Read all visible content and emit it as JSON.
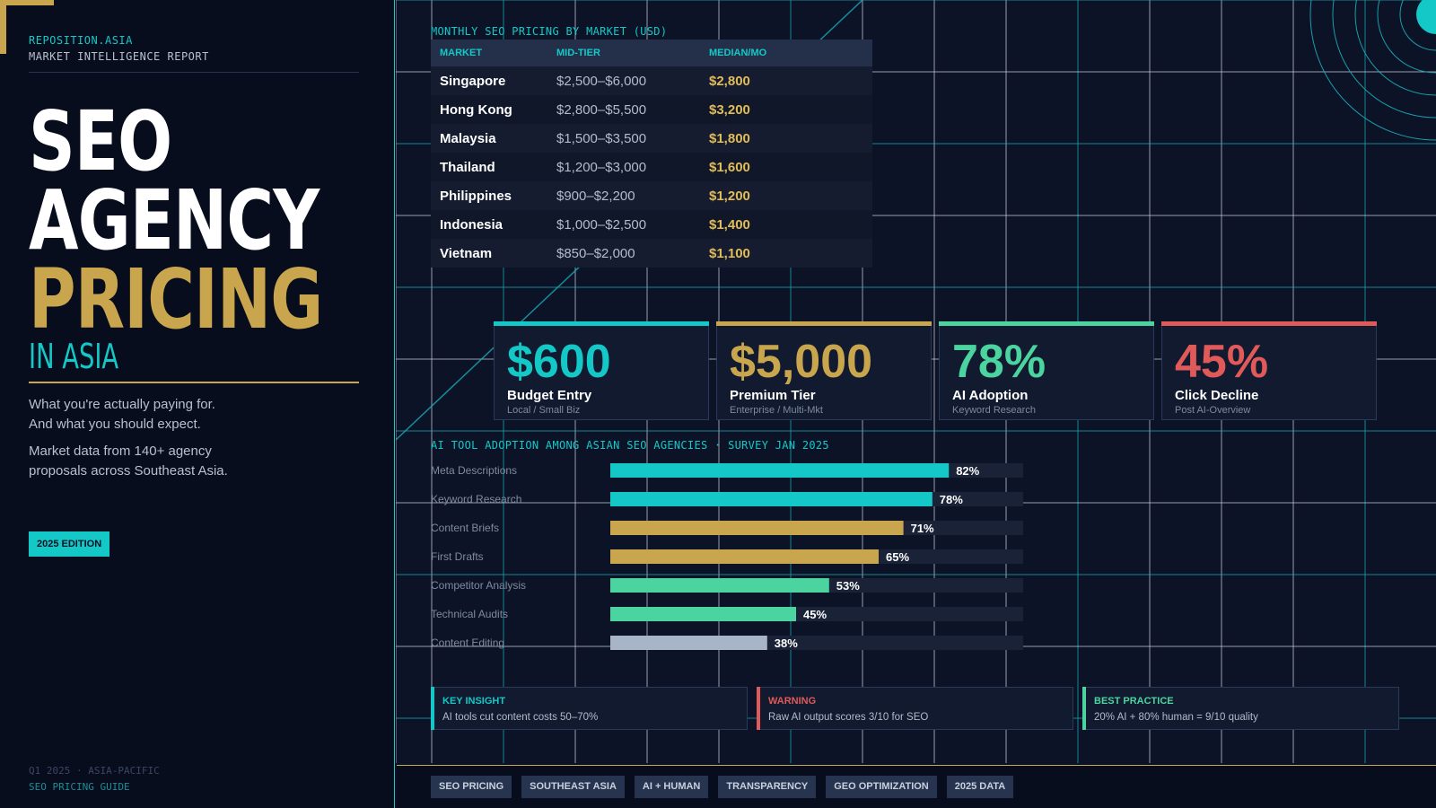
{
  "sidebar": {
    "brand": "REPOSITION.ASIA",
    "report_type": "MARKET INTELLIGENCE REPORT",
    "title_line1": "SEO",
    "title_line2": "AGENCY",
    "title_line3": "PRICING",
    "title_line4": "IN ASIA",
    "tagline_1": "What you're actually paying for. And what you should expect.",
    "tagline_2": "Market data from 140+ agency proposals across Southeast Asia.",
    "edition": "2025 EDITION",
    "footer_1": "Q1 2025  ·  ASIA-PACIFIC",
    "footer_2": "SEO PRICING GUIDE"
  },
  "colors": {
    "accent_cyan": "#14c8c8",
    "accent_gold": "#c9a64e",
    "accent_green": "#4cd4a0",
    "accent_red": "#e05a5a",
    "accent_gray": "#a8b4c8",
    "background": "#0d1326"
  },
  "pricing_table": {
    "title": "MONTHLY SEO PRICING BY MARKET (USD)",
    "headers": [
      "MARKET",
      "MID-TIER",
      "MEDIAN/MO"
    ],
    "rows": [
      {
        "market": "Singapore",
        "range": "$2,500–$6,000",
        "median": "$2,800"
      },
      {
        "market": "Hong Kong",
        "range": "$2,800–$5,500",
        "median": "$3,200"
      },
      {
        "market": "Malaysia",
        "range": "$1,500–$3,500",
        "median": "$1,800"
      },
      {
        "market": "Thailand",
        "range": "$1,200–$3,000",
        "median": "$1,600"
      },
      {
        "market": "Philippines",
        "range": "$900–$2,200",
        "median": "$1,200"
      },
      {
        "market": "Indonesia",
        "range": "$1,000–$2,500",
        "median": "$1,400"
      },
      {
        "market": "Vietnam",
        "range": "$850–$2,000",
        "median": "$1,100"
      }
    ]
  },
  "stats": [
    {
      "value": "$600",
      "label": "Budget Entry",
      "sub": "Local / Small Biz",
      "color": "#14c8c8"
    },
    {
      "value": "$5,000",
      "label": "Premium Tier",
      "sub": "Enterprise / Multi-Mkt",
      "color": "#c9a64e"
    },
    {
      "value": "78%",
      "label": "AI Adoption",
      "sub": "Keyword Research",
      "color": "#4cd4a0"
    },
    {
      "value": "45%",
      "label": "Click Decline",
      "sub": "Post AI-Overview",
      "color": "#e05a5a"
    }
  ],
  "chart_data": {
    "type": "bar",
    "orientation": "horizontal",
    "title": "AI TOOL ADOPTION AMONG ASIAN SEO AGENCIES  ·  SURVEY JAN 2025",
    "categories": [
      "Meta Descriptions",
      "Keyword Research",
      "Content Briefs",
      "First Drafts",
      "Competitor Analysis",
      "Technical Audits",
      "Content Editing"
    ],
    "values": [
      82,
      78,
      71,
      65,
      53,
      45,
      38
    ],
    "value_labels": [
      "82%",
      "78%",
      "71%",
      "65%",
      "53%",
      "45%",
      "38%"
    ],
    "bar_colors": [
      "#14c8c8",
      "#14c8c8",
      "#c9a64e",
      "#c9a64e",
      "#4cd4a0",
      "#4cd4a0",
      "#a8b4c8"
    ],
    "xlim": [
      0,
      100
    ],
    "grid": false,
    "legend": "none"
  },
  "insights": [
    {
      "title": "KEY INSIGHT",
      "text": "AI tools cut content costs 50–70%",
      "color": "#14c8c8"
    },
    {
      "title": "WARNING",
      "text": "Raw AI output scores 3/10 for SEO",
      "color": "#e05a5a"
    },
    {
      "title": "BEST PRACTICE",
      "text": "20% AI + 80% human = 9/10 quality",
      "color": "#4cd4a0"
    }
  ],
  "tags": [
    "SEO PRICING",
    "SOUTHEAST ASIA",
    "AI + HUMAN",
    "TRANSPARENCY",
    "GEO OPTIMIZATION",
    "2025 DATA"
  ]
}
